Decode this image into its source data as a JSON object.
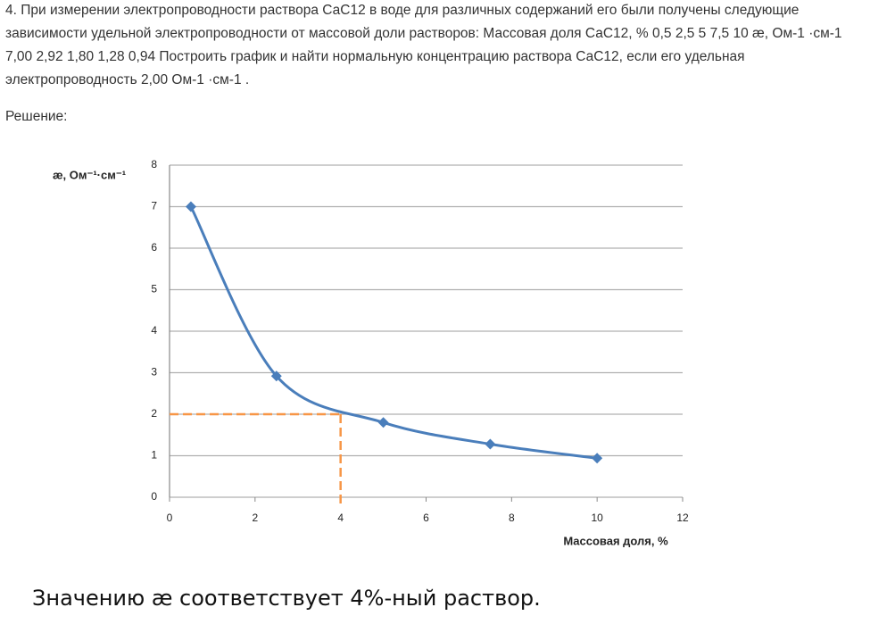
{
  "problem_lines": [
    "4. При измерении электропроводности раствора СаС12 в воде для различных содержаний его были получены следующие",
    "зависимости удельной электропроводности от массовой доли растворов: Массовая доля СаС12, % 0,5 2,5 5 7,5 10 æ, Ом-1 ·см-1",
    "7,00 2,92 1,80 1,28 0,94 Построить график и найти нормальную концентрацию раствора СаС12, если его удельная",
    "электропроводность 2,00 Ом-1 ·см-1 ."
  ],
  "solution_label": "Решение:",
  "chart_data": {
    "type": "line",
    "y_label": "æ, Ом⁻¹·см⁻¹",
    "x_label": "Массовая доля, %",
    "x": [
      0.5,
      2.5,
      5,
      7.5,
      10
    ],
    "values": [
      7.0,
      2.92,
      1.8,
      1.28,
      0.94
    ],
    "color": "#4a7ebb",
    "smooth": true,
    "xlim": [
      0,
      12
    ],
    "xticks": [
      0,
      2,
      4,
      6,
      8,
      10,
      12
    ],
    "ylim": [
      0,
      8
    ],
    "yticks": [
      0,
      1,
      2,
      3,
      4,
      5,
      6,
      7,
      8
    ],
    "grid": true,
    "reference": {
      "x": 4,
      "y": 2,
      "color": "#f79646"
    }
  },
  "conclusion": "Значению æ соответствует 4%-ный раствор."
}
